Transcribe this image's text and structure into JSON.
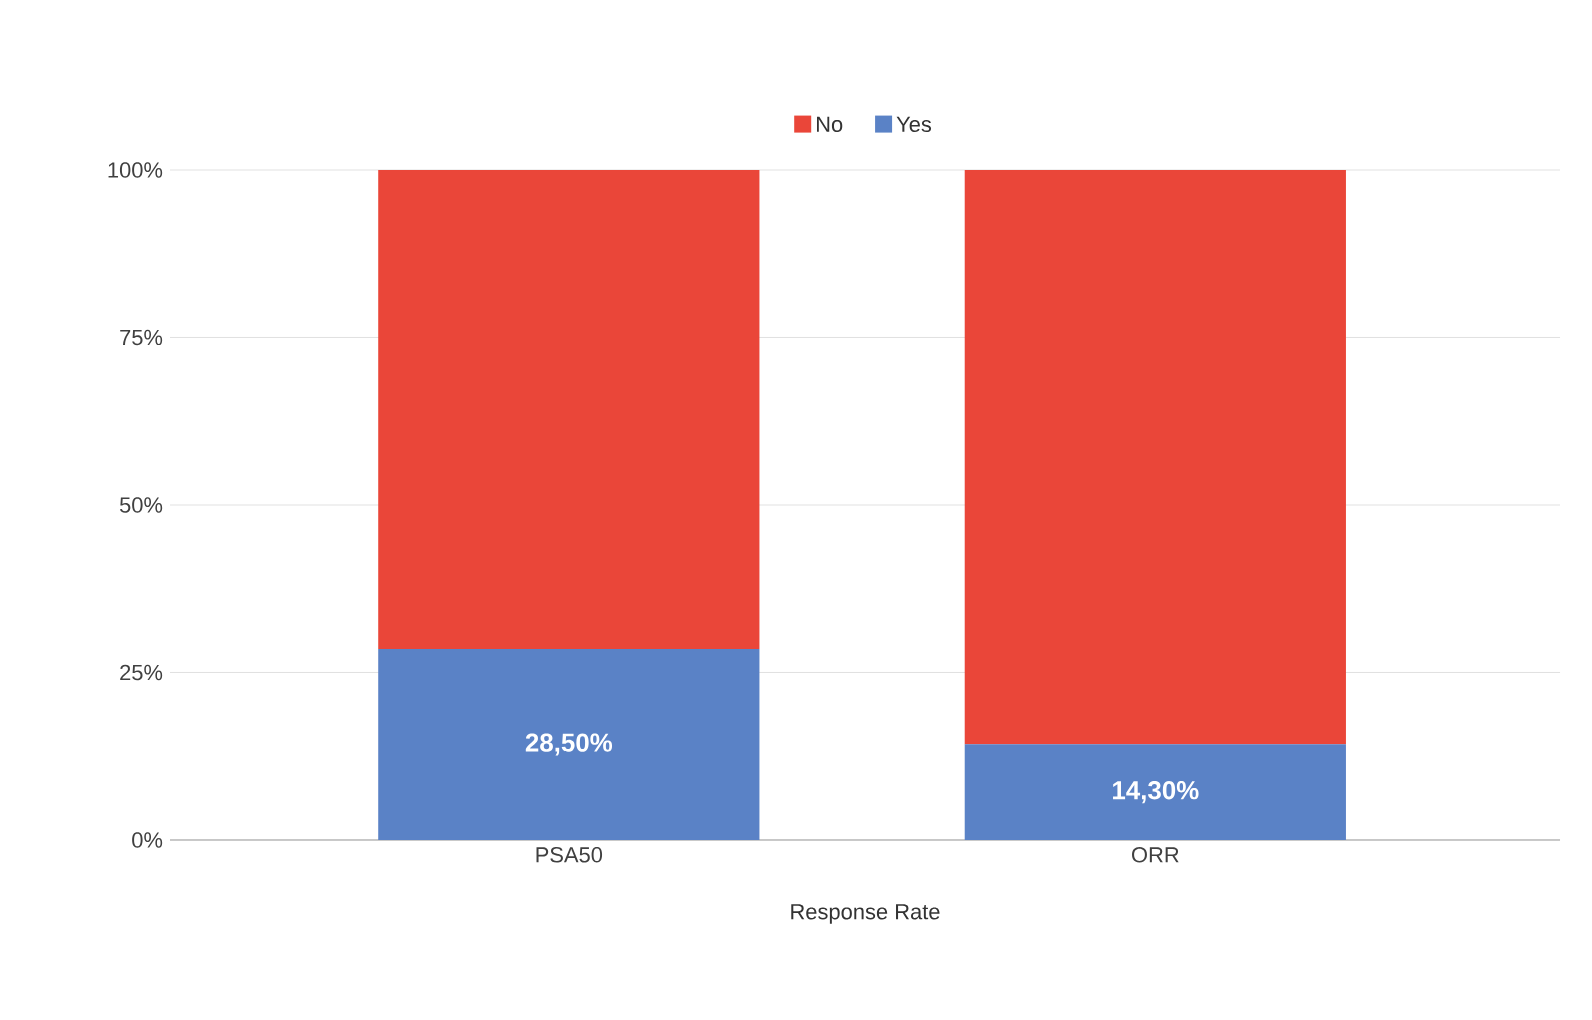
{
  "chart_data": {
    "type": "bar",
    "stacked": true,
    "xlabel": "Response Rate",
    "categories": [
      "PSA50",
      "ORR"
    ],
    "series": [
      {
        "name": "Yes",
        "color": "#5a82c6",
        "values": [
          28.5,
          14.3
        ],
        "value_labels": [
          "28,50%",
          "14,30%"
        ]
      },
      {
        "name": "No",
        "color": "#ea4639",
        "values": [
          71.5,
          85.7
        ]
      }
    ],
    "ylim": [
      0,
      100
    ],
    "yticks": [
      {
        "value": 0,
        "label": "0%"
      },
      {
        "value": 25,
        "label": "25%"
      },
      {
        "value": 50,
        "label": "50%"
      },
      {
        "value": 75,
        "label": "75%"
      },
      {
        "value": 100,
        "label": "100%"
      }
    ],
    "grid": "y",
    "legend": "top"
  }
}
